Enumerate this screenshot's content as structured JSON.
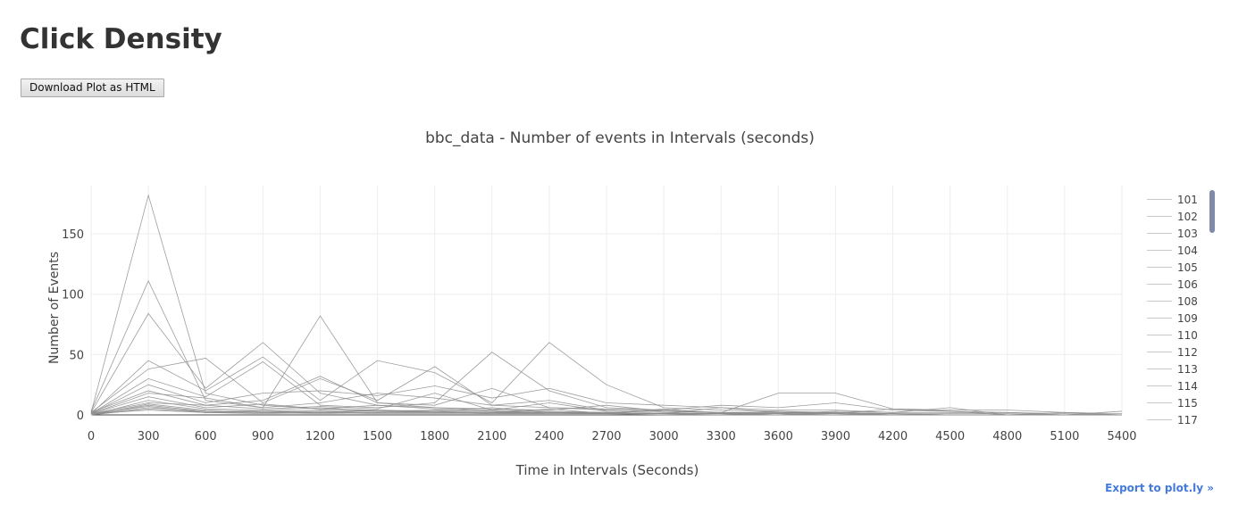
{
  "page": {
    "title": "Click Density",
    "download_label": "Download Plot as HTML",
    "export_label": "Export to plot.ly »"
  },
  "colors": {
    "line": "#8c8c8c",
    "grid": "#eeeeee",
    "legend_line": "#c8c8c8",
    "link": "#447adb",
    "scrollbar": "#7f8aa6"
  },
  "chart_data": {
    "type": "line",
    "title": "bbc_data - Number of events in Intervals (seconds)",
    "xlabel": "Time in Intervals (Seconds)",
    "ylabel": "Number of Events",
    "xlim": [
      0,
      5400
    ],
    "ylim": [
      0,
      190
    ],
    "x_ticks": [
      "0",
      "300",
      "600",
      "900",
      "1200",
      "1500",
      "1800",
      "2100",
      "2400",
      "2700",
      "3000",
      "3300",
      "3600",
      "3900",
      "4200",
      "4500",
      "4800",
      "5100",
      "5400"
    ],
    "y_ticks": [
      "0",
      "50",
      "100",
      "150"
    ],
    "grid": true,
    "legend_placement": "right",
    "x": [
      0,
      300,
      600,
      900,
      1200,
      1500,
      1800,
      2100,
      2400,
      2700,
      3000,
      3300,
      3600,
      3900,
      4200,
      4500,
      4800,
      5100,
      5400
    ],
    "series": [
      {
        "name": "101",
        "values": [
          2,
          182,
          18,
          8,
          5,
          4,
          3,
          2,
          2,
          1,
          1,
          1,
          0,
          0,
          0,
          0,
          0,
          0,
          0
        ]
      },
      {
        "name": "102",
        "values": [
          3,
          111,
          12,
          6,
          82,
          10,
          6,
          4,
          3,
          2,
          1,
          1,
          1,
          0,
          0,
          0,
          0,
          0,
          0
        ]
      },
      {
        "name": "103",
        "values": [
          2,
          84,
          22,
          60,
          18,
          8,
          5,
          3,
          2,
          2,
          1,
          1,
          0,
          0,
          0,
          0,
          0,
          0,
          0
        ]
      },
      {
        "name": "104",
        "values": [
          1,
          45,
          20,
          48,
          12,
          45,
          35,
          10,
          60,
          25,
          6,
          4,
          3,
          2,
          1,
          0,
          0,
          0,
          0
        ]
      },
      {
        "name": "105",
        "values": [
          2,
          38,
          47,
          10,
          30,
          12,
          40,
          8,
          6,
          4,
          3,
          2,
          18,
          18,
          5,
          4,
          4,
          2,
          0
        ]
      },
      {
        "name": "106",
        "values": [
          1,
          30,
          15,
          44,
          8,
          6,
          10,
          52,
          20,
          6,
          4,
          2,
          2,
          1,
          1,
          0,
          0,
          0,
          0
        ]
      },
      {
        "name": "108",
        "values": [
          1,
          25,
          10,
          18,
          20,
          16,
          24,
          14,
          22,
          10,
          8,
          6,
          4,
          4,
          2,
          2,
          2,
          0,
          0
        ]
      },
      {
        "name": "109",
        "values": [
          2,
          20,
          8,
          12,
          32,
          10,
          8,
          22,
          6,
          5,
          4,
          8,
          6,
          10,
          4,
          3,
          2,
          1,
          0
        ]
      },
      {
        "name": "110",
        "values": [
          1,
          18,
          14,
          6,
          10,
          18,
          14,
          8,
          12,
          4,
          3,
          2,
          2,
          2,
          1,
          1,
          1,
          0,
          0
        ]
      },
      {
        "name": "112",
        "values": [
          1,
          15,
          6,
          9,
          5,
          8,
          6,
          5,
          4,
          8,
          3,
          2,
          1,
          1,
          5,
          3,
          0,
          0,
          0
        ]
      },
      {
        "name": "113",
        "values": [
          0,
          12,
          5,
          4,
          6,
          3,
          4,
          3,
          2,
          2,
          1,
          6,
          2,
          1,
          0,
          0,
          0,
          0,
          0
        ]
      },
      {
        "name": "114",
        "values": [
          1,
          10,
          8,
          5,
          7,
          5,
          18,
          4,
          10,
          3,
          2,
          1,
          1,
          3,
          2,
          6,
          0,
          0,
          0
        ]
      },
      {
        "name": "115",
        "values": [
          0,
          9,
          4,
          3,
          4,
          3,
          3,
          6,
          2,
          2,
          1,
          1,
          3,
          1,
          0,
          0,
          0,
          0,
          3
        ]
      },
      {
        "name": "117",
        "values": [
          0,
          8,
          3,
          2,
          3,
          2,
          2,
          2,
          5,
          1,
          1,
          1,
          0,
          2,
          0,
          0,
          0,
          2,
          1
        ]
      },
      {
        "values": [
          1,
          7,
          2,
          3,
          2,
          4,
          2,
          2,
          2,
          1,
          5,
          1,
          0,
          0,
          1,
          0,
          0,
          0,
          0
        ]
      },
      {
        "values": [
          0,
          6,
          3,
          2,
          2,
          2,
          3,
          1,
          2,
          1,
          1,
          1,
          1,
          0,
          0,
          0,
          0,
          0,
          0
        ]
      },
      {
        "values": [
          0,
          5,
          2,
          2,
          1,
          2,
          2,
          2,
          1,
          1,
          1,
          0,
          0,
          0,
          0,
          0,
          0,
          0,
          0
        ]
      },
      {
        "values": [
          1,
          4,
          2,
          1,
          2,
          1,
          1,
          1,
          1,
          1,
          0,
          0,
          0,
          0,
          0,
          0,
          0,
          0,
          0
        ]
      }
    ],
    "legend_entries": [
      "101",
      "102",
      "103",
      "104",
      "105",
      "106",
      "108",
      "109",
      "110",
      "112",
      "113",
      "114",
      "115",
      "117"
    ]
  }
}
